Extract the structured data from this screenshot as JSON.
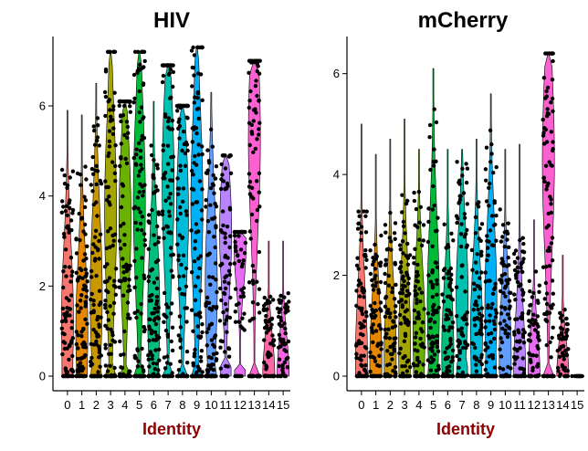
{
  "chart_data": [
    {
      "type": "violin",
      "title": "HIV",
      "xlabel": "Identity",
      "ylabel": "",
      "ylim": [
        0,
        7.5
      ],
      "yticks": [
        0,
        2,
        4,
        6
      ],
      "categories": [
        "0",
        "1",
        "2",
        "3",
        "4",
        "5",
        "6",
        "7",
        "8",
        "9",
        "10",
        "11",
        "12",
        "13",
        "14",
        "15"
      ],
      "colors": [
        "#f8766d",
        "#e58700",
        "#c99800",
        "#a3a500",
        "#6bb100",
        "#00ba38",
        "#00bf7d",
        "#00c0af",
        "#00bcd8",
        "#00b0f6",
        "#619cff",
        "#b983ff",
        "#e76bf3",
        "#fd61d1",
        "#ff67a4",
        "#f564e3"
      ],
      "max_values": [
        5.9,
        5.8,
        6.5,
        7.2,
        6.1,
        7.2,
        6.1,
        6.9,
        6.0,
        7.3,
        6.3,
        4.9,
        3.2,
        7.0,
        3.0,
        3.0
      ],
      "median_values": [
        1.2,
        1.0,
        1.8,
        3.6,
        3.5,
        3.9,
        1.4,
        4.3,
        3.6,
        3.8,
        2.0,
        3.2,
        2.9,
        5.3,
        0.0,
        0.0
      ]
    },
    {
      "type": "violin",
      "title": "mCherry",
      "xlabel": "Identity",
      "ylabel": "",
      "ylim": [
        0,
        6.7
      ],
      "yticks": [
        0,
        2,
        4,
        6
      ],
      "categories": [
        "0",
        "1",
        "2",
        "3",
        "4",
        "5",
        "6",
        "7",
        "8",
        "9",
        "10",
        "11",
        "12",
        "13",
        "14",
        "15"
      ],
      "colors": [
        "#f8766d",
        "#e58700",
        "#c99800",
        "#a3a500",
        "#6bb100",
        "#00ba38",
        "#00bf7d",
        "#00c0af",
        "#00bcd8",
        "#00b0f6",
        "#619cff",
        "#b983ff",
        "#e76bf3",
        "#fd61d1",
        "#ff67a4",
        "#f564e3"
      ],
      "max_values": [
        5.0,
        4.4,
        4.7,
        5.1,
        4.5,
        6.1,
        4.5,
        4.5,
        4.7,
        5.6,
        4.5,
        4.6,
        3.1,
        6.4,
        2.4,
        0.0
      ],
      "median_values": [
        0.3,
        0.3,
        0.4,
        0.6,
        0.9,
        1.4,
        0.5,
        1.6,
        0.9,
        1.4,
        0.4,
        0.0,
        0.0,
        4.3,
        0.0,
        0.0
      ]
    }
  ]
}
